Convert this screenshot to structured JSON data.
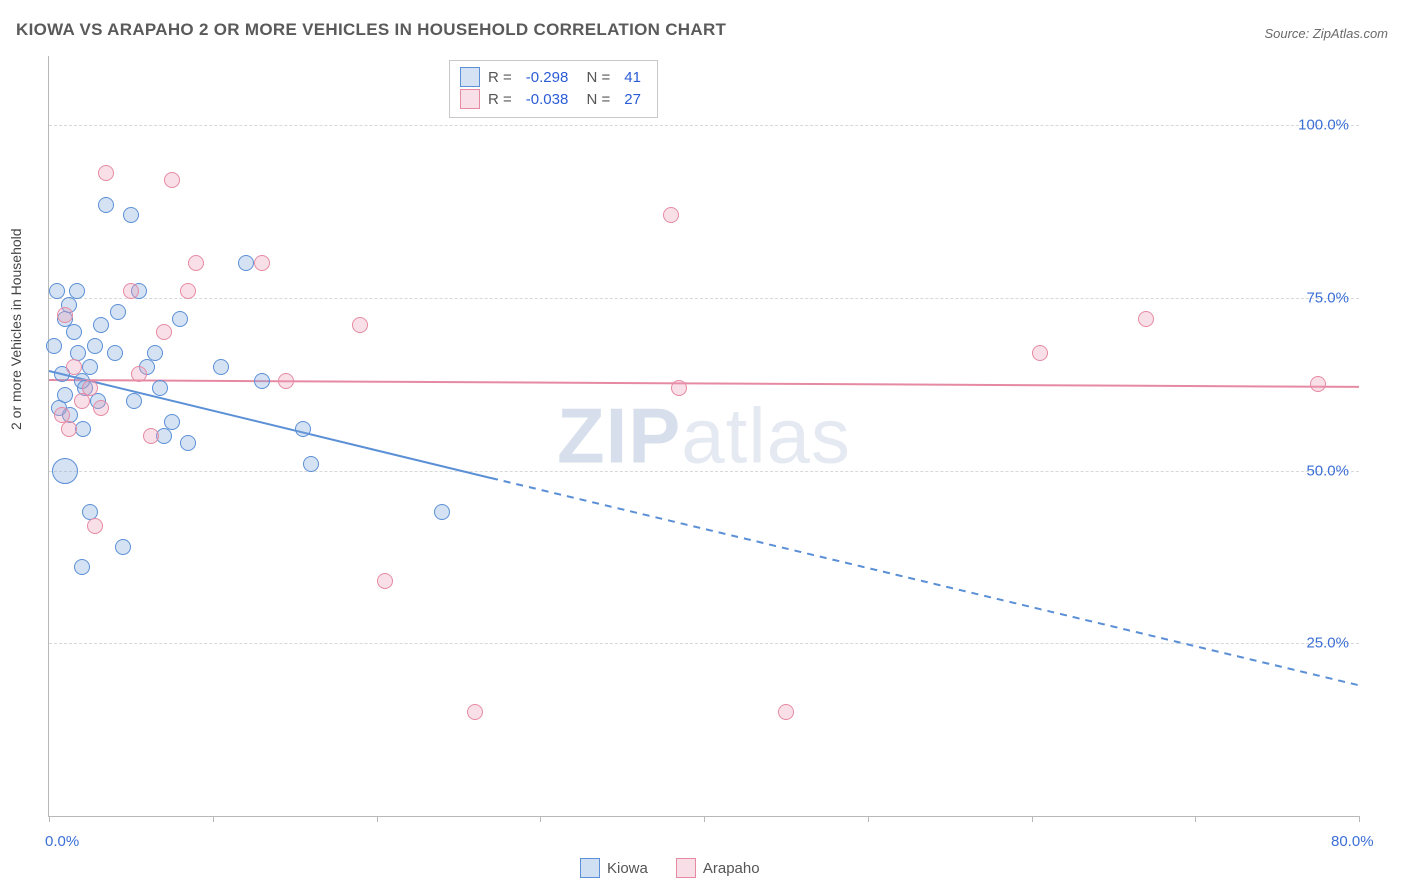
{
  "title": "KIOWA VS ARAPAHO 2 OR MORE VEHICLES IN HOUSEHOLD CORRELATION CHART",
  "source": "Source: ZipAtlas.com",
  "ylabel": "2 or more Vehicles in Household",
  "watermark_bold": "ZIP",
  "watermark_rest": "atlas",
  "chart": {
    "type": "scatter",
    "background_color": "#ffffff",
    "grid_color": "#d8d8d8",
    "axis_color": "#b8b8b8",
    "label_color": "#3b6fd6",
    "xlim": [
      0,
      80
    ],
    "ylim": [
      0,
      110
    ],
    "x_ticks": [
      0,
      10,
      20,
      30,
      40,
      50,
      60,
      70,
      80
    ],
    "x_tick_labels": {
      "0": "0.0%",
      "80": "80.0%"
    },
    "y_gridlines": [
      25,
      50,
      75,
      100
    ],
    "y_tick_labels": {
      "25": "25.0%",
      "50": "50.0%",
      "75": "75.0%",
      "100": "100.0%"
    },
    "marker_radius_default": 8,
    "marker_border_width": 1.5,
    "marker_fill_opacity": 0.32,
    "series": {
      "kiowa": {
        "label": "Kiowa",
        "color": "#5b8fd6",
        "fill": "rgba(120,165,220,0.32)",
        "R": "-0.298",
        "N": "41",
        "points": [
          {
            "x": 0.5,
            "y": 76,
            "r": 8
          },
          {
            "x": 1.0,
            "y": 72,
            "r": 8
          },
          {
            "x": 1.2,
            "y": 74,
            "r": 8
          },
          {
            "x": 1.5,
            "y": 70,
            "r": 8
          },
          {
            "x": 1.8,
            "y": 67,
            "r": 8
          },
          {
            "x": 2.0,
            "y": 63,
            "r": 8
          },
          {
            "x": 0.8,
            "y": 64,
            "r": 8
          },
          {
            "x": 1.0,
            "y": 61,
            "r": 8
          },
          {
            "x": 2.2,
            "y": 62,
            "r": 8
          },
          {
            "x": 2.5,
            "y": 65,
            "r": 8
          },
          {
            "x": 3.5,
            "y": 88.5,
            "r": 8
          },
          {
            "x": 4.0,
            "y": 67,
            "r": 8
          },
          {
            "x": 5.0,
            "y": 87,
            "r": 8
          },
          {
            "x": 5.5,
            "y": 76,
            "r": 8
          },
          {
            "x": 6.0,
            "y": 65,
            "r": 8
          },
          {
            "x": 6.5,
            "y": 67,
            "r": 8
          },
          {
            "x": 7.0,
            "y": 55,
            "r": 8
          },
          {
            "x": 7.5,
            "y": 57,
            "r": 8
          },
          {
            "x": 8.0,
            "y": 72,
            "r": 8
          },
          {
            "x": 8.5,
            "y": 54,
            "r": 8
          },
          {
            "x": 1.0,
            "y": 50,
            "r": 13
          },
          {
            "x": 2.5,
            "y": 44,
            "r": 8
          },
          {
            "x": 4.5,
            "y": 39,
            "r": 8
          },
          {
            "x": 2.0,
            "y": 36,
            "r": 8
          },
          {
            "x": 12.0,
            "y": 80,
            "r": 8
          },
          {
            "x": 13.0,
            "y": 63,
            "r": 8
          },
          {
            "x": 15.5,
            "y": 56,
            "r": 8
          },
          {
            "x": 16.0,
            "y": 51,
            "r": 8
          },
          {
            "x": 10.5,
            "y": 65,
            "r": 8
          },
          {
            "x": 24.0,
            "y": 44,
            "r": 8
          },
          {
            "x": 3.0,
            "y": 60,
            "r": 8
          },
          {
            "x": 3.2,
            "y": 71,
            "r": 8
          },
          {
            "x": 4.2,
            "y": 73,
            "r": 8
          },
          {
            "x": 1.3,
            "y": 58,
            "r": 8
          },
          {
            "x": 0.6,
            "y": 59,
            "r": 8
          },
          {
            "x": 2.8,
            "y": 68,
            "r": 8
          },
          {
            "x": 5.2,
            "y": 60,
            "r": 8
          },
          {
            "x": 6.8,
            "y": 62,
            "r": 8
          },
          {
            "x": 1.7,
            "y": 76,
            "r": 8
          },
          {
            "x": 0.3,
            "y": 68,
            "r": 8
          },
          {
            "x": 2.1,
            "y": 56,
            "r": 8
          }
        ],
        "trend": {
          "x1": 0,
          "y1": 64.5,
          "x2_solid": 27,
          "y2_solid": 49,
          "x2": 80,
          "y2": 19,
          "width": 2
        }
      },
      "arapaho": {
        "label": "Arapaho",
        "color": "#e68aa3",
        "fill": "rgba(235,160,185,0.32)",
        "R": "-0.038",
        "N": "27",
        "points": [
          {
            "x": 1.0,
            "y": 72.5,
            "r": 8
          },
          {
            "x": 1.5,
            "y": 65,
            "r": 8
          },
          {
            "x": 2.0,
            "y": 60,
            "r": 8
          },
          {
            "x": 2.5,
            "y": 62,
            "r": 8
          },
          {
            "x": 0.8,
            "y": 58,
            "r": 8
          },
          {
            "x": 1.2,
            "y": 56,
            "r": 8
          },
          {
            "x": 3.5,
            "y": 93,
            "r": 8
          },
          {
            "x": 5.0,
            "y": 76,
            "r": 8
          },
          {
            "x": 5.5,
            "y": 64,
            "r": 8
          },
          {
            "x": 7.0,
            "y": 70,
            "r": 8
          },
          {
            "x": 7.5,
            "y": 92,
            "r": 8
          },
          {
            "x": 8.5,
            "y": 76,
            "r": 8
          },
          {
            "x": 9.0,
            "y": 80,
            "r": 8
          },
          {
            "x": 13.0,
            "y": 80,
            "r": 8
          },
          {
            "x": 2.8,
            "y": 42,
            "r": 8
          },
          {
            "x": 3.2,
            "y": 59,
            "r": 8
          },
          {
            "x": 14.5,
            "y": 63,
            "r": 8
          },
          {
            "x": 19.0,
            "y": 71,
            "r": 8
          },
          {
            "x": 20.5,
            "y": 34,
            "r": 8
          },
          {
            "x": 26.0,
            "y": 15,
            "r": 8
          },
          {
            "x": 38.0,
            "y": 87,
            "r": 8
          },
          {
            "x": 38.5,
            "y": 62,
            "r": 8
          },
          {
            "x": 45.0,
            "y": 15,
            "r": 8
          },
          {
            "x": 60.5,
            "y": 67,
            "r": 8
          },
          {
            "x": 67.0,
            "y": 72,
            "r": 8
          },
          {
            "x": 77.5,
            "y": 62.5,
            "r": 8
          },
          {
            "x": 6.2,
            "y": 55,
            "r": 8
          }
        ],
        "trend": {
          "x1": 0,
          "y1": 63.2,
          "x2_solid": 80,
          "y2_solid": 62.2,
          "x2": 80,
          "y2": 62.2,
          "width": 2
        }
      }
    }
  },
  "bottom_legend": [
    {
      "label": "Kiowa",
      "color": "#5b8fd6",
      "fill": "rgba(120,165,220,0.35)"
    },
    {
      "label": "Arapaho",
      "color": "#e68aa3",
      "fill": "rgba(235,160,185,0.35)"
    }
  ]
}
